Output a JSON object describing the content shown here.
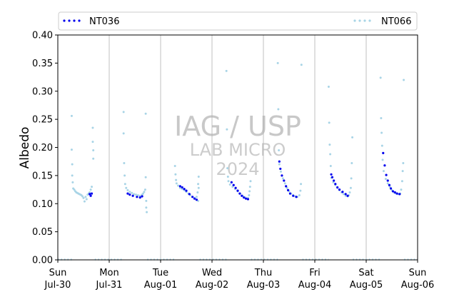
{
  "chart_data": {
    "type": "scatter",
    "ylabel": "Albedo",
    "ylim": [
      0,
      0.4
    ],
    "yticks": [
      "0.00",
      "0.05",
      "0.10",
      "0.15",
      "0.20",
      "0.25",
      "0.30",
      "0.35",
      "0.40"
    ],
    "xlim": [
      "2023-07-30",
      "2023-08-06"
    ],
    "xticks": [
      {
        "day": "Sun",
        "date": "Jul-30"
      },
      {
        "day": "Mon",
        "date": "Jul-31"
      },
      {
        "day": "Tue",
        "date": "Aug-01"
      },
      {
        "day": "Wed",
        "date": "Aug-02"
      },
      {
        "day": "Thu",
        "date": "Aug-03"
      },
      {
        "day": "Fri",
        "date": "Aug-04"
      },
      {
        "day": "Sat",
        "date": "Aug-05"
      },
      {
        "day": "Sun",
        "date": "Aug-06"
      }
    ],
    "grid": "vertical",
    "legend_placement": "top (above plot)",
    "watermark": {
      "line1": "IAG / USP",
      "line2": "LAB MICRO",
      "line3": "2024"
    },
    "series": [
      {
        "name": "NT036",
        "color": "#0000ee",
        "points": [
          [
            0.62,
            0.117
          ],
          [
            0.64,
            0.114
          ],
          [
            0.66,
            0.118
          ],
          [
            1.36,
            0.118
          ],
          [
            1.4,
            0.116
          ],
          [
            1.46,
            0.114
          ],
          [
            1.54,
            0.112
          ],
          [
            1.6,
            0.111
          ],
          [
            1.64,
            0.113
          ],
          [
            2.38,
            0.131
          ],
          [
            2.42,
            0.129
          ],
          [
            2.46,
            0.126
          ],
          [
            2.5,
            0.123
          ],
          [
            2.56,
            0.117
          ],
          [
            2.62,
            0.112
          ],
          [
            2.66,
            0.109
          ],
          [
            2.7,
            0.107
          ],
          [
            3.38,
            0.138
          ],
          [
            3.42,
            0.133
          ],
          [
            3.46,
            0.128
          ],
          [
            3.5,
            0.123
          ],
          [
            3.54,
            0.118
          ],
          [
            3.58,
            0.114
          ],
          [
            3.62,
            0.111
          ],
          [
            3.66,
            0.109
          ],
          [
            3.7,
            0.108
          ],
          [
            4.31,
            0.175
          ],
          [
            4.33,
            0.162
          ],
          [
            4.36,
            0.15
          ],
          [
            4.4,
            0.141
          ],
          [
            4.44,
            0.131
          ],
          [
            4.48,
            0.124
          ],
          [
            4.52,
            0.118
          ],
          [
            4.58,
            0.114
          ],
          [
            4.64,
            0.112
          ],
          [
            5.32,
            0.152
          ],
          [
            5.34,
            0.147
          ],
          [
            5.37,
            0.141
          ],
          [
            5.4,
            0.135
          ],
          [
            5.44,
            0.129
          ],
          [
            5.48,
            0.125
          ],
          [
            5.54,
            0.121
          ],
          [
            5.6,
            0.117
          ],
          [
            5.64,
            0.114
          ],
          [
            6.33,
            0.19
          ],
          [
            6.36,
            0.168
          ],
          [
            6.39,
            0.151
          ],
          [
            6.42,
            0.141
          ],
          [
            6.45,
            0.133
          ],
          [
            6.48,
            0.127
          ],
          [
            6.52,
            0.122
          ],
          [
            6.56,
            0.12
          ],
          [
            6.6,
            0.118
          ],
          [
            6.65,
            0.117
          ]
        ]
      },
      {
        "name": "NT066",
        "color": "#a8d4e6",
        "points": [
          [
            0.27,
            0.256
          ],
          [
            0.27,
            0.196
          ],
          [
            0.28,
            0.17
          ],
          [
            0.28,
            0.15
          ],
          [
            0.29,
            0.138
          ],
          [
            0.3,
            0.127
          ],
          [
            0.32,
            0.125
          ],
          [
            0.34,
            0.122
          ],
          [
            0.36,
            0.12
          ],
          [
            0.38,
            0.119
          ],
          [
            0.4,
            0.118
          ],
          [
            0.42,
            0.117
          ],
          [
            0.44,
            0.116
          ],
          [
            0.46,
            0.115
          ],
          [
            0.48,
            0.113
          ],
          [
            0.5,
            0.11
          ],
          [
            0.52,
            0.104
          ],
          [
            0.54,
            0.112
          ],
          [
            0.56,
            0.108
          ],
          [
            0.58,
            0.116
          ],
          [
            0.6,
            0.118
          ],
          [
            0.62,
            0.12
          ],
          [
            0.64,
            0.125
          ],
          [
            0.66,
            0.13
          ],
          [
            0.68,
            0.235
          ],
          [
            0.68,
            0.21
          ],
          [
            0.69,
            0.195
          ],
          [
            0.69,
            0.18
          ],
          [
            1.28,
            0.263
          ],
          [
            1.28,
            0.225
          ],
          [
            1.29,
            0.172
          ],
          [
            1.3,
            0.15
          ],
          [
            1.31,
            0.135
          ],
          [
            1.33,
            0.128
          ],
          [
            1.36,
            0.124
          ],
          [
            1.4,
            0.121
          ],
          [
            1.44,
            0.119
          ],
          [
            1.48,
            0.117
          ],
          [
            1.52,
            0.116
          ],
          [
            1.56,
            0.115
          ],
          [
            1.6,
            0.114
          ],
          [
            1.64,
            0.116
          ],
          [
            1.66,
            0.118
          ],
          [
            1.68,
            0.121
          ],
          [
            1.7,
            0.125
          ],
          [
            1.71,
            0.26
          ],
          [
            1.71,
            0.147
          ],
          [
            1.72,
            0.105
          ],
          [
            1.72,
            0.093
          ],
          [
            1.73,
            0.085
          ],
          [
            2.28,
            0.167
          ],
          [
            2.29,
            0.152
          ],
          [
            2.3,
            0.142
          ],
          [
            2.31,
            0.136
          ],
          [
            2.34,
            0.132
          ],
          [
            2.38,
            0.128
          ],
          [
            2.42,
            0.126
          ],
          [
            2.46,
            0.124
          ],
          [
            2.5,
            0.121
          ],
          [
            2.54,
            0.118
          ],
          [
            2.58,
            0.115
          ],
          [
            2.62,
            0.112
          ],
          [
            2.66,
            0.11
          ],
          [
            2.7,
            0.112
          ],
          [
            2.72,
            0.12
          ],
          [
            2.73,
            0.135
          ],
          [
            2.74,
            0.148
          ],
          [
            2.74,
            0.128
          ],
          [
            2.73,
            0.105
          ],
          [
            3.28,
            0.336
          ],
          [
            3.29,
            0.232
          ],
          [
            3.3,
            0.163
          ],
          [
            3.31,
            0.148
          ],
          [
            3.32,
            0.14
          ],
          [
            3.35,
            0.134
          ],
          [
            3.4,
            0.13
          ],
          [
            3.45,
            0.126
          ],
          [
            3.5,
            0.122
          ],
          [
            3.55,
            0.118
          ],
          [
            3.6,
            0.114
          ],
          [
            3.65,
            0.111
          ],
          [
            3.7,
            0.11
          ],
          [
            3.72,
            0.115
          ],
          [
            3.73,
            0.122
          ],
          [
            3.74,
            0.13
          ],
          [
            3.75,
            0.14
          ],
          [
            4.28,
            0.35
          ],
          [
            4.29,
            0.268
          ],
          [
            4.3,
            0.195
          ],
          [
            4.31,
            0.17
          ],
          [
            4.34,
            0.157
          ],
          [
            4.38,
            0.145
          ],
          [
            4.42,
            0.136
          ],
          [
            4.46,
            0.128
          ],
          [
            4.5,
            0.122
          ],
          [
            4.54,
            0.118
          ],
          [
            4.58,
            0.115
          ],
          [
            4.62,
            0.113
          ],
          [
            4.66,
            0.112
          ],
          [
            4.7,
            0.115
          ],
          [
            4.72,
            0.123
          ],
          [
            4.73,
            0.135
          ],
          [
            4.74,
            0.347
          ],
          [
            5.27,
            0.308
          ],
          [
            5.28,
            0.244
          ],
          [
            5.29,
            0.205
          ],
          [
            5.3,
            0.188
          ],
          [
            5.31,
            0.167
          ],
          [
            5.32,
            0.146
          ],
          [
            5.36,
            0.138
          ],
          [
            5.4,
            0.133
          ],
          [
            5.44,
            0.128
          ],
          [
            5.48,
            0.124
          ],
          [
            5.52,
            0.12
          ],
          [
            5.56,
            0.117
          ],
          [
            5.6,
            0.114
          ],
          [
            5.64,
            0.113
          ],
          [
            5.66,
            0.115
          ],
          [
            5.68,
            0.12
          ],
          [
            5.7,
            0.128
          ],
          [
            5.71,
            0.145
          ],
          [
            5.72,
            0.172
          ],
          [
            5.73,
            0.218
          ],
          [
            6.28,
            0.324
          ],
          [
            6.29,
            0.252
          ],
          [
            6.3,
            0.226
          ],
          [
            6.31,
            0.203
          ],
          [
            6.32,
            0.178
          ],
          [
            6.34,
            0.158
          ],
          [
            6.38,
            0.144
          ],
          [
            6.42,
            0.136
          ],
          [
            6.46,
            0.13
          ],
          [
            6.5,
            0.124
          ],
          [
            6.54,
            0.12
          ],
          [
            6.58,
            0.118
          ],
          [
            6.62,
            0.117
          ],
          [
            6.66,
            0.118
          ],
          [
            6.68,
            0.125
          ],
          [
            6.7,
            0.14
          ],
          [
            6.71,
            0.158
          ],
          [
            6.72,
            0.172
          ],
          [
            6.73,
            0.32
          ]
        ],
        "baseline_spans": [
          [
            0,
            0.28
          ],
          [
            0.72,
            1.28
          ],
          [
            1.74,
            2.28
          ],
          [
            2.76,
            3.28
          ],
          [
            3.76,
            4.28
          ],
          [
            4.76,
            5.27
          ],
          [
            5.74,
            6.28
          ],
          [
            6.74,
            7.0
          ]
        ]
      }
    ]
  }
}
